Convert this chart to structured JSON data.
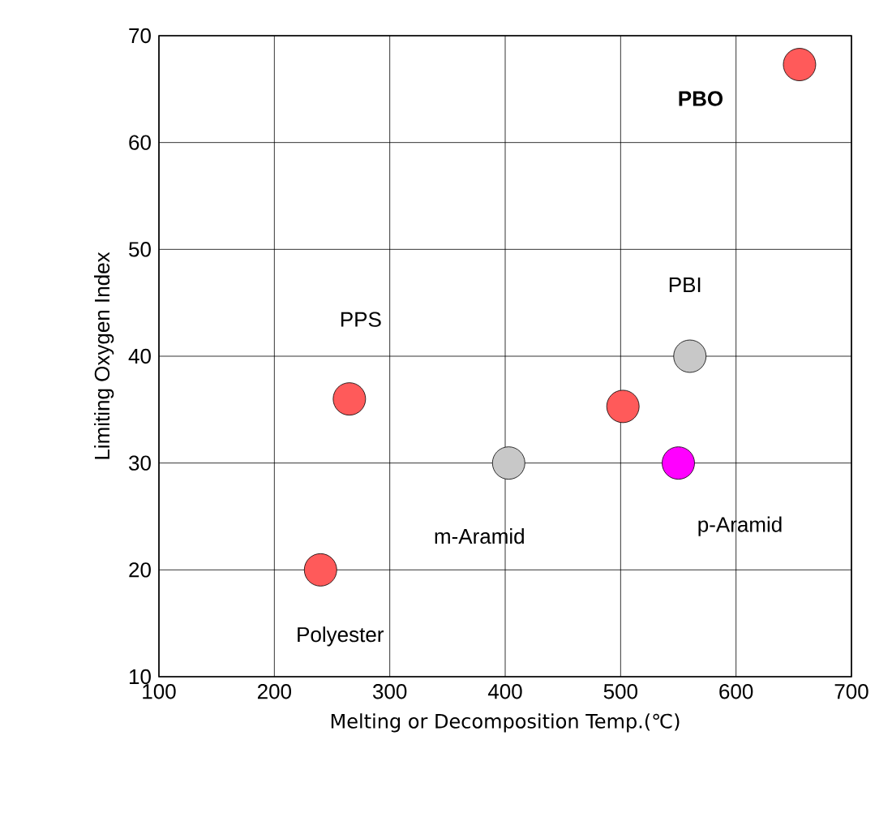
{
  "chart_data": {
    "type": "scatter",
    "xlabel": "Melting or Decomposition Temp.(℃)",
    "ylabel": "Limiting Oxygen Index",
    "x": [
      240,
      265,
      403,
      502,
      550,
      560,
      655
    ],
    "values": [
      20,
      36,
      30,
      35.3,
      30,
      40,
      67.3
    ],
    "colors": [
      "#ff5a5a",
      "#ff5a5a",
      "#c8c8c8",
      "#ff5a5a",
      "#ff00ff",
      "#c8c8c8",
      "#ff5a5a"
    ],
    "annotations": [
      "Polyester",
      "PPS",
      "m-Aramid",
      "p-Aramid",
      "PBI",
      "**PBO**"
    ],
    "xlim": [
      100,
      700
    ],
    "ylim": [
      10,
      70
    ],
    "xticks": [
      100,
      200,
      300,
      400,
      500,
      600,
      700
    ],
    "yticks": [
      10,
      20,
      30,
      40,
      50,
      60,
      70
    ],
    "grid": true,
    "marker": "circle"
  }
}
